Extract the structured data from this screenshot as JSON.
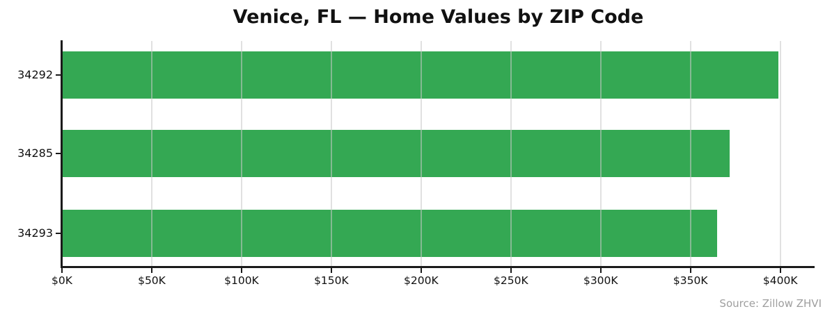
{
  "chart_data": {
    "type": "bar",
    "orientation": "horizontal",
    "title": "Venice, FL — Home Values by ZIP Code",
    "categories": [
      "34292",
      "34285",
      "34293"
    ],
    "values": [
      399000,
      372000,
      365000
    ],
    "value_unit": "USD",
    "xlabel": "",
    "ylabel": "",
    "xlim": [
      0,
      400000
    ],
    "xtick_values": [
      0,
      50000,
      100000,
      150000,
      200000,
      250000,
      300000,
      350000,
      400000
    ],
    "xtick_labels": [
      "$0K",
      "$50K",
      "$100K",
      "$150K",
      "$200K",
      "$250K",
      "$300K",
      "$350K",
      "$400K"
    ],
    "grid": "vertical",
    "legend": "none",
    "annotation": "Source: Zillow ZHVI"
  },
  "colors": {
    "bar": "#34a853",
    "grid": "#e6e6e6",
    "axis": "#1a1a1a",
    "text": "#111111",
    "source_text": "#9e9e9e",
    "background": "#ffffff"
  }
}
